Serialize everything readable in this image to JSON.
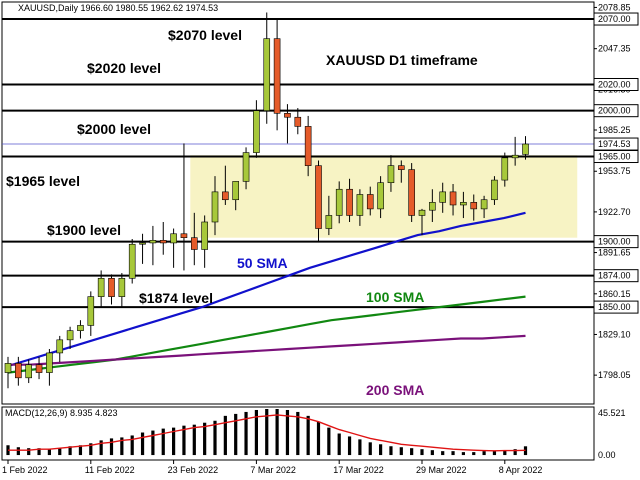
{
  "chart_data": [
    {
      "type": "candlestick",
      "symbol_line": "XAUUSD,Daily  1966.60 1980.55 1962.62 1974.53",
      "title": "XAUUSD D1 timeframe",
      "ylim": [
        1776,
        2083
      ],
      "y_ticks": [
        2078.85,
        2047.35,
        2016.3,
        1985.25,
        1953.75,
        1922.7,
        1891.65,
        1860.15,
        1829.1,
        1798.05
      ],
      "x_tick_labels": [
        {
          "label": "1 Feb 2022",
          "index": 0
        },
        {
          "label": "11 Feb 2022",
          "index": 8
        },
        {
          "label": "23 Feb 2022",
          "index": 16
        },
        {
          "label": "7 Mar 2022",
          "index": 24
        },
        {
          "label": "17 Mar 2022",
          "index": 32
        },
        {
          "label": "29 Mar 2022",
          "index": 40
        },
        {
          "label": "8 Apr 2022",
          "index": 48
        }
      ],
      "levels": [
        {
          "value": 2070,
          "label": "2070.00",
          "annotation": "$2070 level"
        },
        {
          "value": 2020,
          "label": "2020.00",
          "annotation": "$2020 level"
        },
        {
          "value": 2000,
          "label": "2000.00",
          "annotation": "$2000 level"
        },
        {
          "value": 1965,
          "label": "1965.00",
          "annotation": "$1965 level"
        },
        {
          "value": 1900,
          "label": "1900.00",
          "annotation": "$1900 level"
        },
        {
          "value": 1874,
          "label": "1874.00",
          "annotation": "$1874 level"
        },
        {
          "value": 1850,
          "label": "1850.00",
          "annotation": ""
        }
      ],
      "current_price": {
        "value": 1974.53,
        "label": "1974.53"
      },
      "range_box": {
        "from_index": 18,
        "to_index": 55,
        "low": 1903,
        "high": 1966
      },
      "candles": [
        {
          "o": 1800,
          "h": 1812,
          "l": 1788,
          "c": 1807
        },
        {
          "o": 1807,
          "h": 1812,
          "l": 1790,
          "c": 1796
        },
        {
          "o": 1796,
          "h": 1810,
          "l": 1792,
          "c": 1806
        },
        {
          "o": 1806,
          "h": 1812,
          "l": 1795,
          "c": 1800
        },
        {
          "o": 1800,
          "h": 1818,
          "l": 1790,
          "c": 1815
        },
        {
          "o": 1815,
          "h": 1828,
          "l": 1808,
          "c": 1825
        },
        {
          "o": 1825,
          "h": 1835,
          "l": 1818,
          "c": 1832
        },
        {
          "o": 1832,
          "h": 1840,
          "l": 1826,
          "c": 1836
        },
        {
          "o": 1836,
          "h": 1862,
          "l": 1828,
          "c": 1858
        },
        {
          "o": 1858,
          "h": 1878,
          "l": 1850,
          "c": 1872
        },
        {
          "o": 1872,
          "h": 1875,
          "l": 1852,
          "c": 1858
        },
        {
          "o": 1858,
          "h": 1876,
          "l": 1850,
          "c": 1872
        },
        {
          "o": 1872,
          "h": 1902,
          "l": 1868,
          "c": 1898
        },
        {
          "o": 1898,
          "h": 1906,
          "l": 1883,
          "c": 1899
        },
        {
          "o": 1899,
          "h": 1912,
          "l": 1882,
          "c": 1901
        },
        {
          "o": 1901,
          "h": 1915,
          "l": 1890,
          "c": 1899
        },
        {
          "o": 1899,
          "h": 1910,
          "l": 1880,
          "c": 1906
        },
        {
          "o": 1906,
          "h": 1975,
          "l": 1878,
          "c": 1903
        },
        {
          "o": 1903,
          "h": 1922,
          "l": 1882,
          "c": 1894
        },
        {
          "o": 1894,
          "h": 1920,
          "l": 1880,
          "c": 1915
        },
        {
          "o": 1915,
          "h": 1950,
          "l": 1905,
          "c": 1938
        },
        {
          "o": 1938,
          "h": 1958,
          "l": 1928,
          "c": 1932
        },
        {
          "o": 1932,
          "h": 1946,
          "l": 1924,
          "c": 1946
        },
        {
          "o": 1946,
          "h": 1972,
          "l": 1940,
          "c": 1968
        },
        {
          "o": 1968,
          "h": 2008,
          "l": 1964,
          "c": 2000
        },
        {
          "o": 2000,
          "h": 2075,
          "l": 1990,
          "c": 2055
        },
        {
          "o": 2055,
          "h": 2070,
          "l": 1985,
          "c": 1998
        },
        {
          "o": 1998,
          "h": 2005,
          "l": 1975,
          "c": 1995
        },
        {
          "o": 1995,
          "h": 2002,
          "l": 1982,
          "c": 1988
        },
        {
          "o": 1988,
          "h": 1996,
          "l": 1950,
          "c": 1958
        },
        {
          "o": 1958,
          "h": 1962,
          "l": 1900,
          "c": 1910
        },
        {
          "o": 1910,
          "h": 1935,
          "l": 1905,
          "c": 1920
        },
        {
          "o": 1920,
          "h": 1946,
          "l": 1914,
          "c": 1940
        },
        {
          "o": 1940,
          "h": 1948,
          "l": 1915,
          "c": 1920
        },
        {
          "o": 1920,
          "h": 1940,
          "l": 1912,
          "c": 1936
        },
        {
          "o": 1936,
          "h": 1942,
          "l": 1920,
          "c": 1925
        },
        {
          "o": 1925,
          "h": 1950,
          "l": 1918,
          "c": 1945
        },
        {
          "o": 1945,
          "h": 1966,
          "l": 1938,
          "c": 1958
        },
        {
          "o": 1958,
          "h": 1962,
          "l": 1945,
          "c": 1955
        },
        {
          "o": 1955,
          "h": 1960,
          "l": 1915,
          "c": 1920
        },
        {
          "o": 1920,
          "h": 1925,
          "l": 1905,
          "c": 1924
        },
        {
          "o": 1924,
          "h": 1940,
          "l": 1915,
          "c": 1930
        },
        {
          "o": 1930,
          "h": 1945,
          "l": 1922,
          "c": 1938
        },
        {
          "o": 1938,
          "h": 1944,
          "l": 1920,
          "c": 1928
        },
        {
          "o": 1928,
          "h": 1938,
          "l": 1918,
          "c": 1930
        },
        {
          "o": 1930,
          "h": 1936,
          "l": 1916,
          "c": 1925
        },
        {
          "o": 1925,
          "h": 1935,
          "l": 1918,
          "c": 1932
        },
        {
          "o": 1932,
          "h": 1950,
          "l": 1928,
          "c": 1947
        },
        {
          "o": 1947,
          "h": 1968,
          "l": 1942,
          "c": 1964
        },
        {
          "o": 1964,
          "h": 1980,
          "l": 1958,
          "c": 1966
        },
        {
          "o": 1966.6,
          "h": 1980.55,
          "l": 1962.62,
          "c": 1974.53
        }
      ],
      "moving_averages": [
        {
          "name": "50 SMA",
          "color": "#1111cc",
          "values": [
            1805,
            1810,
            1815,
            1820,
            1825,
            1830,
            1835,
            1840,
            1845,
            1850,
            1856,
            1862,
            1868,
            1874,
            1880,
            1885,
            1890,
            1895,
            1900,
            1905,
            1908,
            1912,
            1915,
            1918,
            1922
          ]
        },
        {
          "name": "100 SMA",
          "color": "#118811",
          "values": [
            1800,
            1802,
            1804,
            1806,
            1808,
            1810,
            1813,
            1816,
            1819,
            1822,
            1825,
            1828,
            1831,
            1834,
            1837,
            1840,
            1842,
            1844,
            1846,
            1848,
            1850,
            1852,
            1854,
            1856,
            1858
          ]
        },
        {
          "name": "200 SMA",
          "color": "#7a117a",
          "values": [
            1806,
            1806,
            1807,
            1808,
            1809,
            1810,
            1811,
            1812,
            1813,
            1814,
            1815,
            1816,
            1817,
            1818,
            1819,
            1820,
            1821,
            1822,
            1823,
            1824,
            1825,
            1826,
            1826,
            1827,
            1828
          ]
        }
      ]
    },
    {
      "type": "bar+line",
      "label": "MACD(12,26,9) 8.935 4.823",
      "y_ticks": [
        45.521,
        0.0
      ],
      "ylim": [
        -3,
        47
      ],
      "histogram_series": "MACD",
      "histogram": [
        10,
        8,
        7,
        7,
        6,
        7,
        9,
        10,
        12,
        15,
        17,
        18,
        20,
        23,
        25,
        27,
        28,
        30,
        31,
        33,
        35,
        40,
        42,
        44,
        46,
        47,
        47,
        46,
        44,
        40,
        34,
        28,
        22,
        19,
        16,
        13,
        11,
        9,
        8,
        7,
        6,
        5,
        4,
        4,
        3,
        3,
        4,
        4,
        5,
        6,
        8.935
      ],
      "signal": [
        5,
        5,
        5,
        6,
        6,
        7,
        8,
        9,
        10,
        12,
        13,
        15,
        16,
        18,
        20,
        22,
        24,
        26,
        28,
        29,
        31,
        33,
        35,
        37,
        39,
        40,
        41,
        40,
        39,
        37,
        34,
        30,
        26,
        23,
        20,
        17,
        15,
        13,
        11,
        10,
        9,
        8,
        7,
        6,
        5.5,
        5,
        4.5,
        4.3,
        4.5,
        4.6,
        4.823
      ]
    }
  ],
  "annotations": {
    "title": "XAUUSD D1 timeframe",
    "sma50": "50 SMA",
    "sma100": "100 SMA",
    "sma200": "200 SMA"
  },
  "colors": {
    "candle_up": "#a7c83a",
    "candle_down": "#e55b2a",
    "range_box": "#f7f3c4",
    "macd_signal": "#e01414",
    "grid_level": "#000000",
    "current_line": "#5555cc"
  }
}
